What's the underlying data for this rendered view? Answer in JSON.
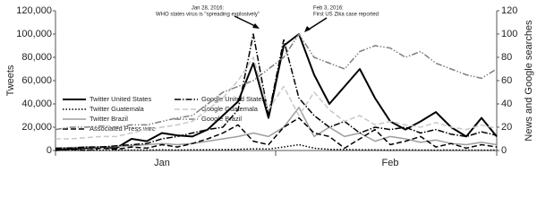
{
  "chart_data": {
    "type": "line",
    "y_title": "Tweets",
    "y2_title": "News and Google searches",
    "categories": [
      null,
      null,
      null,
      null,
      null,
      null,
      null,
      "Jan",
      null,
      null,
      null,
      null,
      null,
      null,
      null,
      null,
      null,
      null,
      null,
      null,
      null,
      null,
      "Feb",
      null,
      null,
      null,
      null,
      null,
      null,
      null
    ],
    "ylim": [
      0,
      120000
    ],
    "yticks": [
      {
        "value": 0,
        "label": "0"
      },
      {
        "value": 20000,
        "label": "20,000"
      },
      {
        "value": 40000,
        "label": "40,000"
      },
      {
        "value": 60000,
        "label": "60,000"
      },
      {
        "value": 80000,
        "label": "80,000"
      },
      {
        "value": 100000,
        "label": "100,000"
      },
      {
        "value": 120000,
        "label": "120,000"
      }
    ],
    "y2lim": [
      0,
      120
    ],
    "y2ticks": [
      0,
      20,
      40,
      60,
      80,
      100,
      120
    ],
    "series": [
      {
        "name": "Twitter United States",
        "color": "#000000",
        "line_style": "solid",
        "width": 2,
        "values": [
          1000,
          1500,
          2000,
          3000,
          2000,
          10000,
          8000,
          15000,
          13000,
          12000,
          18000,
          30000,
          42000,
          75000,
          28000,
          90000,
          100000,
          65000,
          40000,
          55000,
          70000,
          45000,
          25000,
          18000,
          25000,
          33000,
          20000,
          12000,
          28000,
          12000
        ]
      },
      {
        "name": "Twitter Guatemala",
        "color": "#000000",
        "line_style": "dotted",
        "width": 1.5,
        "values": [
          200,
          200,
          300,
          200,
          300,
          400,
          300,
          500,
          400,
          500,
          600,
          800,
          1000,
          1500,
          1200,
          3000,
          5000,
          2000,
          1000,
          800,
          600,
          500,
          400,
          500,
          400,
          300,
          400,
          300,
          300,
          200
        ]
      },
      {
        "name": "Twitter Brazil",
        "color": "#9e9e9e",
        "line_style": "solid",
        "width": 1.5,
        "values": [
          2000,
          2500,
          3000,
          3000,
          3500,
          4000,
          5000,
          6000,
          5000,
          6000,
          8000,
          10000,
          12000,
          15000,
          12000,
          20000,
          37000,
          12000,
          20000,
          12000,
          15000,
          8000,
          12000,
          10000,
          7000,
          9000,
          6000,
          5000,
          7000,
          5000
        ]
      },
      {
        "name": "Associated Press wire",
        "color": "#000000",
        "line_style": "dashed",
        "width": 1.5,
        "axis": "y2",
        "values": [
          0,
          1,
          0,
          2,
          1,
          3,
          2,
          5,
          3,
          6,
          10,
          15,
          22,
          8,
          5,
          20,
          28,
          15,
          12,
          2,
          10,
          18,
          5,
          8,
          12,
          3,
          6,
          2,
          5,
          3
        ]
      },
      {
        "name": "Google United States",
        "color": "#000000",
        "line_style": "dashdot",
        "width": 1.5,
        "axis": "y2",
        "values": [
          2,
          2,
          3,
          3,
          4,
          5,
          6,
          10,
          12,
          15,
          18,
          20,
          35,
          100,
          30,
          95,
          45,
          30,
          20,
          25,
          15,
          20,
          18,
          20,
          15,
          18,
          14,
          12,
          16,
          13
        ]
      },
      {
        "name": "Google Guatemala",
        "color": "#c8c8c8",
        "line_style": "dashed",
        "width": 1.5,
        "axis": "y2",
        "values": [
          10,
          10,
          11,
          12,
          12,
          15,
          18,
          20,
          22,
          25,
          35,
          45,
          60,
          80,
          35,
          55,
          30,
          50,
          35,
          25,
          30,
          22,
          25,
          22,
          20,
          24,
          20,
          18,
          22,
          19
        ]
      },
      {
        "name": "Google Brazil",
        "color": "#808080",
        "line_style": "dashdotdot",
        "width": 1.5,
        "axis": "y2",
        "values": [
          18,
          20,
          20,
          21,
          20,
          22,
          22,
          25,
          28,
          30,
          40,
          50,
          55,
          60,
          70,
          80,
          100,
          80,
          75,
          70,
          85,
          90,
          88,
          80,
          85,
          75,
          70,
          65,
          62,
          70
        ]
      }
    ],
    "annotations": [
      {
        "lines": [
          "Jan 28, 2016:",
          "WHO states virus is \"spreading explosively\""
        ]
      },
      {
        "lines": [
          "Feb 3, 2016:",
          "First US Zika case reported"
        ]
      }
    ]
  }
}
